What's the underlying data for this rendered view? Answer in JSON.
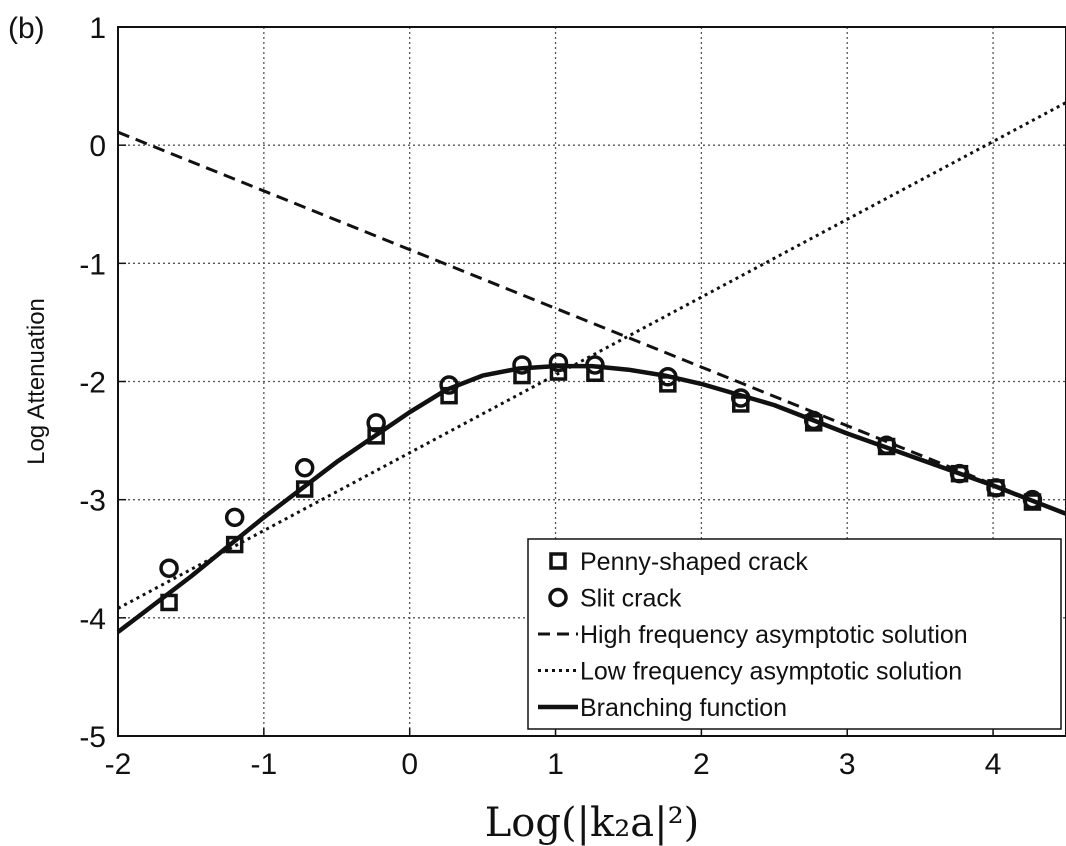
{
  "chart_data": {
    "type": "line",
    "panel_label": "(b)",
    "xlabel": "Log(|k₂a|²)",
    "ylabel": "Log Attenuation",
    "xlim": [
      -2,
      4.5
    ],
    "ylim": [
      -5,
      1
    ],
    "xticks": [
      -2,
      -1,
      0,
      1,
      2,
      3,
      4
    ],
    "yticks": [
      -5,
      -4,
      -3,
      -2,
      -1,
      0,
      1
    ],
    "grid": true,
    "legend_position": "bottom-right",
    "series": [
      {
        "name": "Penny-shaped crack",
        "kind": "markers",
        "marker": "square",
        "x": [
          -1.65,
          -1.2,
          -0.72,
          -0.23,
          0.27,
          0.77,
          1.02,
          1.27,
          1.77,
          2.27,
          2.77,
          3.27,
          3.77,
          4.02,
          4.27
        ],
        "y": [
          -3.87,
          -3.38,
          -2.91,
          -2.46,
          -2.12,
          -1.95,
          -1.92,
          -1.93,
          -2.02,
          -2.19,
          -2.35,
          -2.55,
          -2.78,
          -2.9,
          -3.02
        ]
      },
      {
        "name": "Slit crack",
        "kind": "markers",
        "marker": "circle",
        "x": [
          -1.65,
          -1.2,
          -0.72,
          -0.23,
          0.27,
          0.77,
          1.02,
          1.27,
          1.77,
          2.27,
          2.77,
          3.27,
          3.77,
          4.02,
          4.27
        ],
        "y": [
          -3.58,
          -3.15,
          -2.73,
          -2.35,
          -2.03,
          -1.86,
          -1.84,
          -1.86,
          -1.96,
          -2.14,
          -2.33,
          -2.54,
          -2.78,
          -2.9,
          -3.0
        ]
      },
      {
        "name": "High frequency asymptotic solution",
        "kind": "line",
        "dash": "dashed",
        "x": [
          -2,
          4.5
        ],
        "y": [
          0.11,
          -3.12
        ]
      },
      {
        "name": "Low frequency asymptotic solution",
        "kind": "line",
        "dash": "dotted",
        "x": [
          -2,
          4.5
        ],
        "y": [
          -3.92,
          0.36
        ]
      },
      {
        "name": "Branching function",
        "kind": "line",
        "dash": "solid",
        "x": [
          -2,
          -1.5,
          -1.0,
          -0.5,
          0.0,
          0.25,
          0.5,
          0.75,
          1.0,
          1.25,
          1.5,
          1.75,
          2.0,
          2.5,
          3.0,
          3.5,
          4.0,
          4.5
        ],
        "y": [
          -4.12,
          -3.65,
          -3.15,
          -2.68,
          -2.26,
          -2.07,
          -1.95,
          -1.89,
          -1.87,
          -1.87,
          -1.9,
          -1.95,
          -2.02,
          -2.2,
          -2.44,
          -2.66,
          -2.88,
          -3.12
        ]
      }
    ]
  }
}
